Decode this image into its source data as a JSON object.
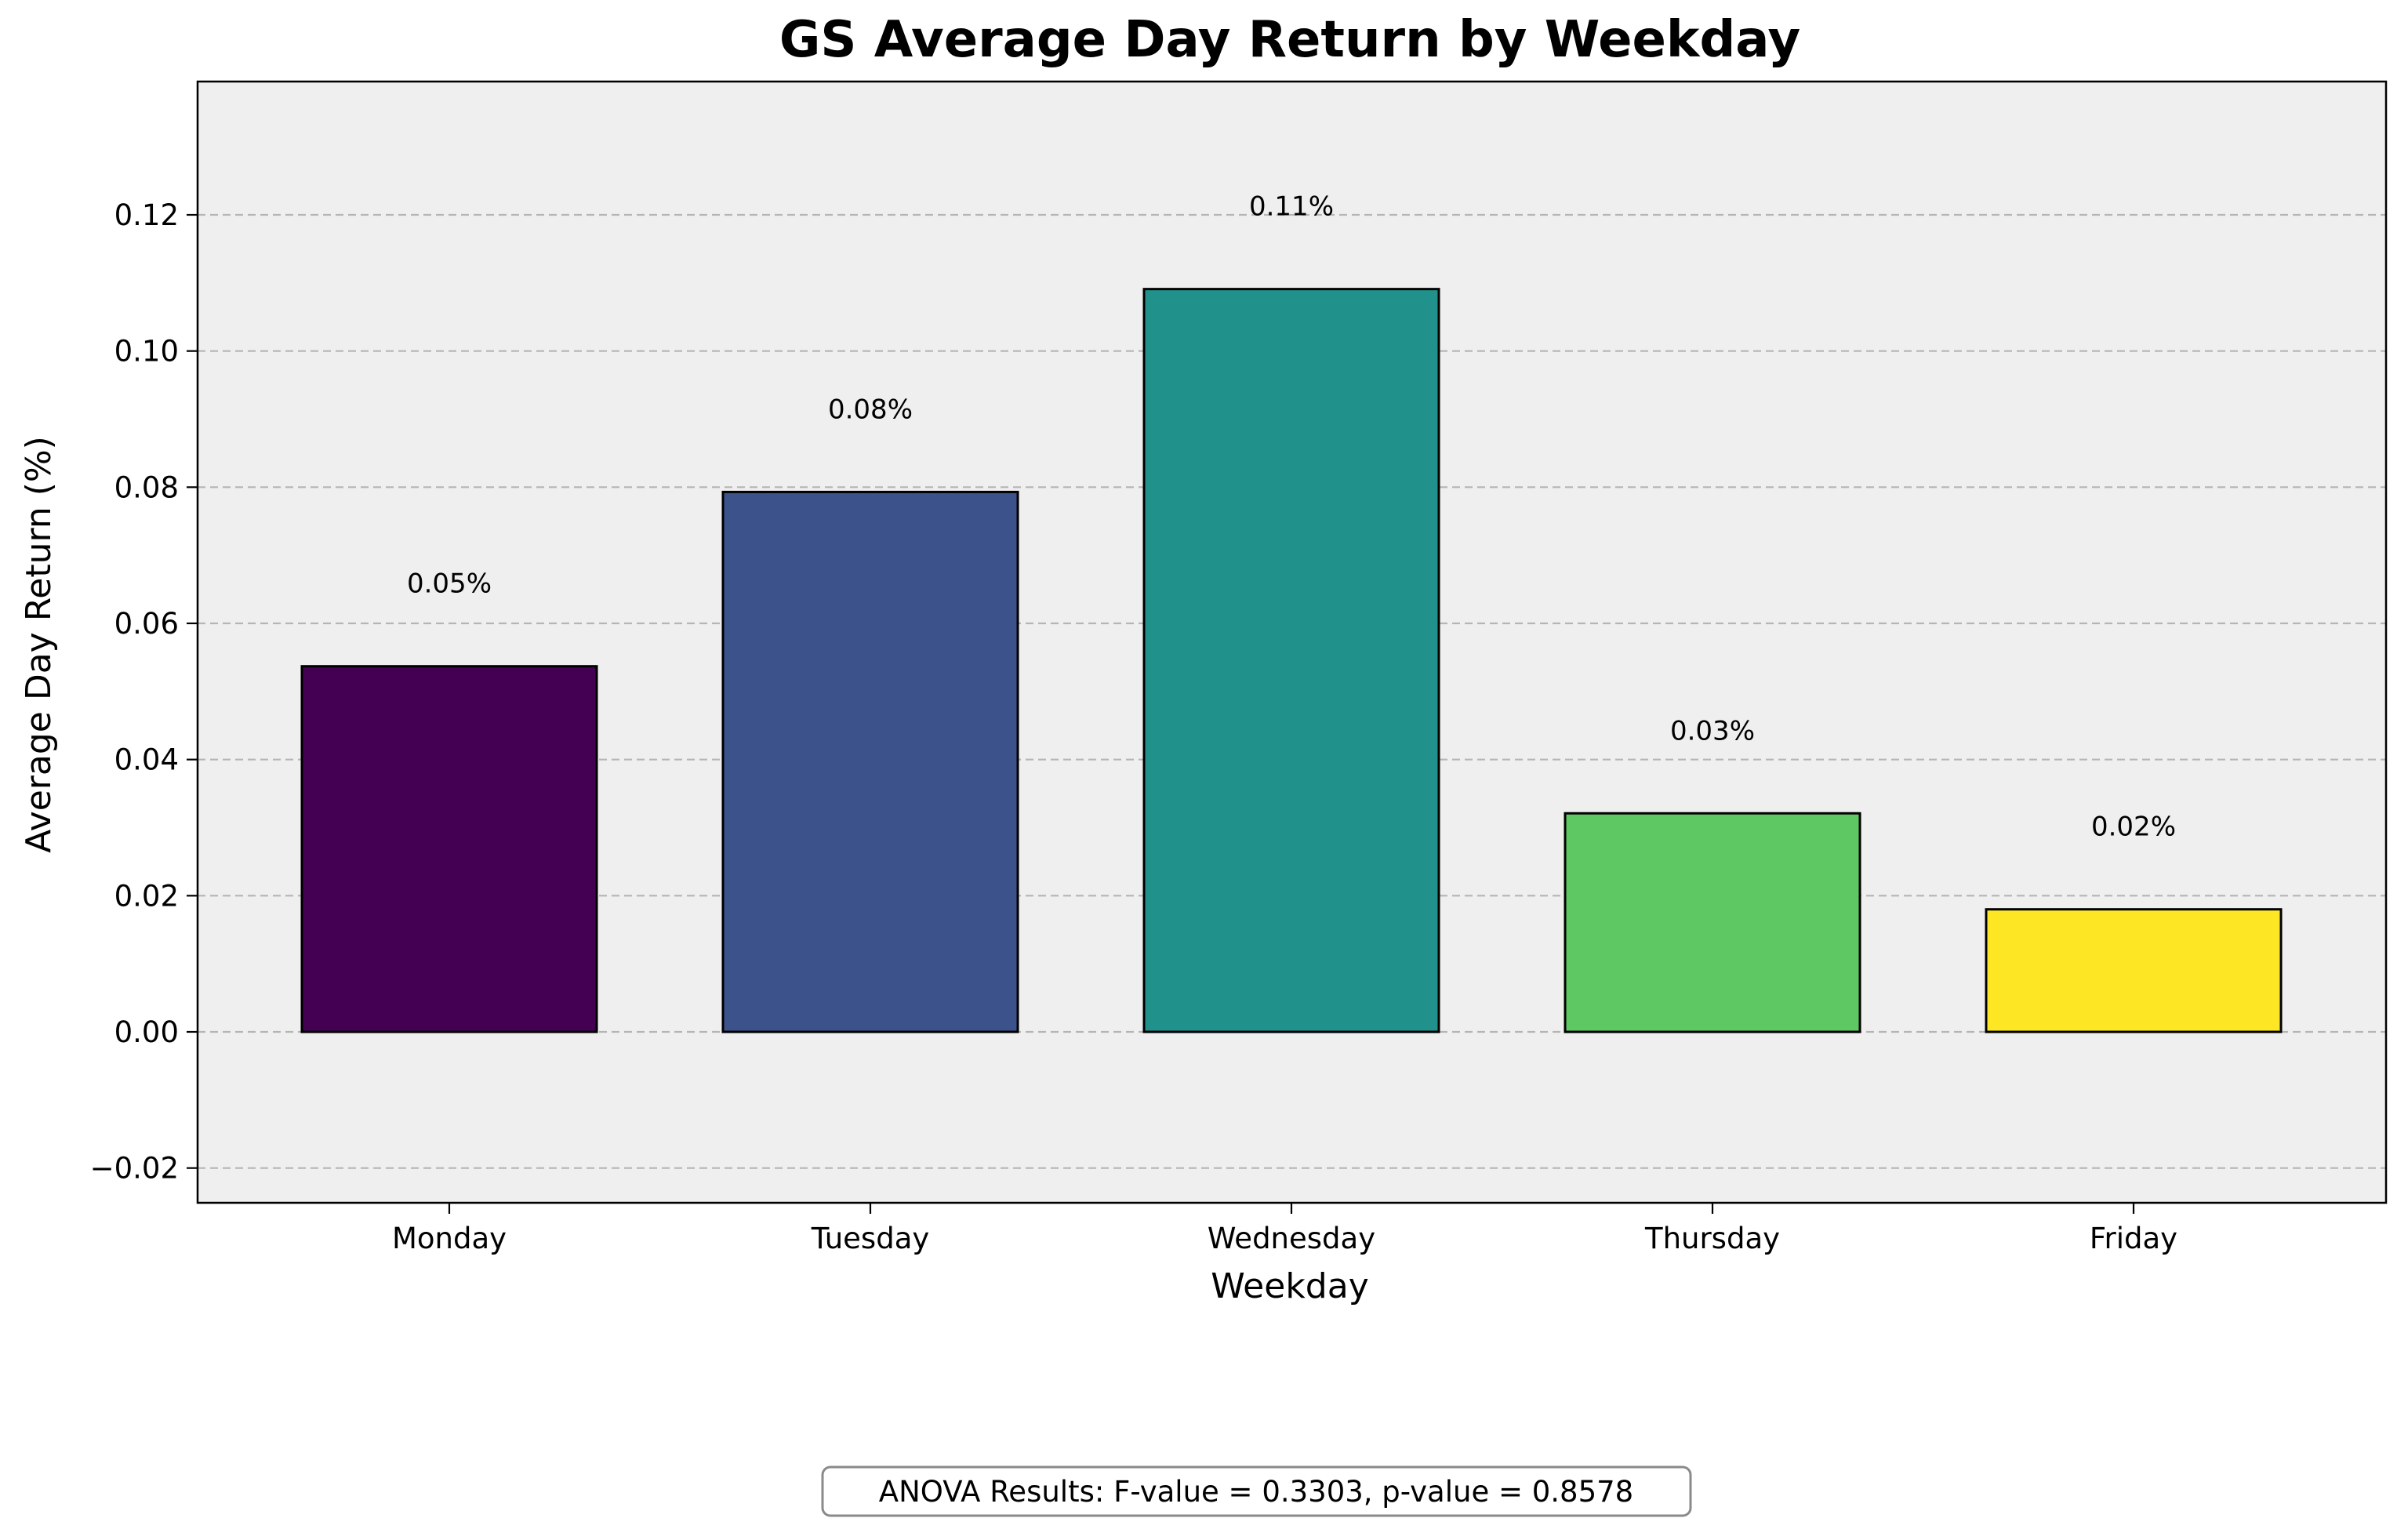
{
  "chart_data": {
    "type": "bar",
    "title": "GS Average Day Return by Weekday",
    "xlabel": "Weekday",
    "ylabel": "Average Day Return (%)",
    "categories": [
      "Monday",
      "Tuesday",
      "Wednesday",
      "Thursday",
      "Friday"
    ],
    "values": [
      0.0537,
      0.0793,
      0.1091,
      0.0321,
      0.018
    ],
    "data_labels": [
      "0.05%",
      "0.08%",
      "0.11%",
      "0.03%",
      "0.02%"
    ],
    "ylim": [
      -0.025,
      0.14
    ],
    "yticks": [
      -0.02,
      0.0,
      0.02,
      0.04,
      0.06,
      0.08,
      0.1,
      0.12
    ],
    "ytick_labels": [
      "−0.02",
      "0.00",
      "0.02",
      "0.04",
      "0.06",
      "0.08",
      "0.10",
      "0.12"
    ],
    "grid": "y, dashed",
    "colors": [
      "#440154",
      "#3b528b",
      "#21918c",
      "#5ec962",
      "#fde725"
    ],
    "plot_background": "#efefef",
    "annotation": "ANOVA Results: F-value = 0.3303, p-value = 0.8578"
  }
}
